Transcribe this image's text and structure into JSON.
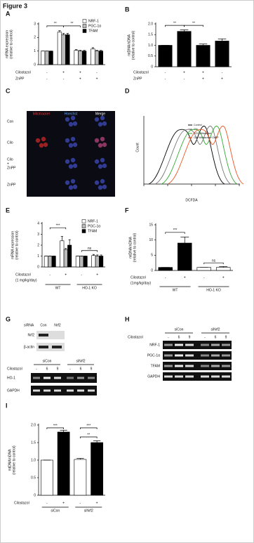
{
  "title": "Figure 3",
  "chart_data": [
    {
      "type": "bar",
      "label": "A",
      "ylabel": [
        "mRNA expression",
        "(relative to control)"
      ],
      "series": [
        {
          "name": "NRF-1",
          "color": "#ffffff",
          "values": [
            1,
            2.4,
            1.05,
            1.15
          ],
          "errors": [
            0,
            0.1,
            0.05,
            0.1
          ]
        },
        {
          "name": "PGC-1α",
          "color": "#bbbbbb",
          "values": [
            1,
            2.2,
            1.0,
            1.0
          ],
          "errors": [
            0,
            0.1,
            0.05,
            0.05
          ]
        },
        {
          "name": "TFAM",
          "color": "#000000",
          "values": [
            1,
            2.2,
            1.0,
            1.0
          ],
          "errors": [
            0,
            0.1,
            0.05,
            0.05
          ]
        }
      ],
      "ylim": [
        0,
        3
      ],
      "yticks": [
        0,
        1,
        2,
        3
      ],
      "conditions": [
        {
          "name": "Cilostazol",
          "values": [
            "-",
            "+",
            "+",
            "-"
          ]
        },
        {
          "name": "ZnPP",
          "values": [
            "-",
            "-",
            "+",
            "+"
          ]
        }
      ],
      "annotations": [
        "**",
        "**"
      ]
    },
    {
      "type": "bar",
      "label": "B",
      "ylabel": [
        "mtDNA/nDNA",
        "(relative to control)"
      ],
      "series": [
        {
          "color": "#000000",
          "values": [
            1.0,
            1.65,
            1.0,
            1.2
          ],
          "errors": [
            0,
            0.07,
            0.06,
            0.1
          ]
        }
      ],
      "ylim": [
        0,
        2
      ],
      "yticks": [
        0,
        0.5,
        {
          "value": 1,
          "label": "1.0"
        },
        1.5,
        {
          "value": 2,
          "label": "2.0"
        }
      ],
      "conditions": [
        {
          "name": "Cilostazol",
          "values": [
            "-",
            "+",
            "+",
            "-"
          ]
        },
        {
          "name": "ZnPP",
          "values": [
            "-",
            "-",
            "+",
            "+"
          ]
        }
      ],
      "annotations": [
        "**",
        "**"
      ]
    },
    {
      "type": "bar",
      "label": "E",
      "ylabel": [
        "mRNA expression",
        "(relative to control)"
      ],
      "series": [
        {
          "name": "NRF-1",
          "color": "#ffffff",
          "values": [
            1,
            2.4,
            1,
            1.05
          ],
          "errors": [
            0,
            0.4,
            0,
            0.1
          ]
        },
        {
          "name": "PGC-1α",
          "color": "#bbbbbb",
          "values": [
            1,
            1.6,
            1,
            1.0
          ],
          "errors": [
            0,
            0.1,
            0,
            0.1
          ]
        },
        {
          "name": "TFAM",
          "color": "#000000",
          "values": [
            1,
            2.0,
            1,
            1.0
          ],
          "errors": [
            0,
            0.5,
            0,
            0.1
          ]
        }
      ],
      "ylim": [
        0,
        4
      ],
      "yticks": [
        0,
        1,
        2,
        3,
        4
      ],
      "conditions": [
        {
          "name": "Cilostazol",
          "note": "(1 mg/kg/day)",
          "values": [
            "-",
            "+",
            "-",
            "+"
          ]
        }
      ],
      "groups": [
        "WT",
        "HO-1 KO"
      ],
      "annotations": [
        "***",
        "ns"
      ]
    },
    {
      "type": "bar",
      "label": "F",
      "ylabel": [
        "mtDNA/nDNA",
        "(relative to control)"
      ],
      "series": [
        {
          "colors": [
            "#000000",
            "#000000",
            "#ffffff",
            "#ffffff"
          ],
          "values": [
            1,
            9,
            1,
            1
          ],
          "errors": [
            0,
            2,
            0,
            0.3
          ]
        }
      ],
      "ylim": [
        0,
        15
      ],
      "yticks": [
        0,
        5,
        10,
        15
      ],
      "conditions": [
        {
          "name": "Cilostazol",
          "note": "(1mg/kg/day)",
          "values": [
            "-",
            "+",
            "-",
            "+"
          ]
        }
      ],
      "groups": [
        "WT",
        "HO-1 KO"
      ],
      "annotations": [
        "***",
        "ns"
      ]
    },
    {
      "type": "bar",
      "label": "I",
      "ylabel": [
        "mtDNA/nDNA",
        "(relative to control)"
      ],
      "series": [
        {
          "colors": [
            "#ffffff",
            "#000000",
            "#ffffff",
            "#000000"
          ],
          "values": [
            1.0,
            1.8,
            1.02,
            1.5
          ],
          "errors": [
            0,
            0.05,
            0.03,
            0.05
          ]
        }
      ],
      "ylim": [
        0,
        2
      ],
      "yticks": [
        0,
        0.5,
        {
          "value": 1,
          "label": "1.0"
        },
        1.5,
        {
          "value": 2,
          "label": "2.0"
        }
      ],
      "conditions": [
        {
          "name": "Cilostazol",
          "values": [
            "-",
            "+",
            "-",
            "+"
          ]
        }
      ],
      "groups": [
        "siCon",
        "siNrf2"
      ],
      "annotations": [
        "***",
        "***",
        "**"
      ]
    }
  ],
  "panels": {
    "C": {
      "label": "C",
      "columns": [
        "Mitotracker",
        "Hoechst",
        "Merge"
      ],
      "rows": [
        [
          "Con"
        ],
        [
          "Cilo"
        ],
        [
          "Cilo",
          "+",
          "ZnPP"
        ],
        [
          "ZnPP"
        ]
      ]
    },
    "D": {
      "label": "D",
      "xlabel": "DCFDA",
      "ylabel": "Count",
      "legend": [
        {
          "name": "Control",
          "color": "#000000"
        },
        {
          "name": "Cilo",
          "color": "#777777"
        },
        {
          "name": "PGC-Mitoactive",
          "color": "#33aa33"
        },
        {
          "name": "Cilo+Mitoactive+ZnPP",
          "color": "#ee5522"
        }
      ]
    },
    "G": {
      "label": "G",
      "blot1": {
        "header": "siRNA",
        "lanes": [
          "Con",
          "Nrf2"
        ],
        "rows": [
          "Nrf2",
          "β-actin"
        ]
      },
      "blot2": {
        "groups": [
          "siCon",
          "siNrf2"
        ],
        "treatment": "Cilostazol",
        "lanes": [
          "-",
          "6",
          "9",
          "-",
          "6",
          "9"
        ],
        "rows": [
          "HO-1",
          "GAPDH"
        ]
      }
    },
    "H": {
      "label": "H",
      "groups": [
        "siCon",
        "siNrf2"
      ],
      "treatment": "Cilostazol",
      "lanes": [
        "-",
        "6",
        "9",
        "-",
        "6",
        "9"
      ],
      "rows": [
        "NRF-1",
        "PGC-1α",
        "TFAM",
        "GAPDH"
      ]
    }
  }
}
